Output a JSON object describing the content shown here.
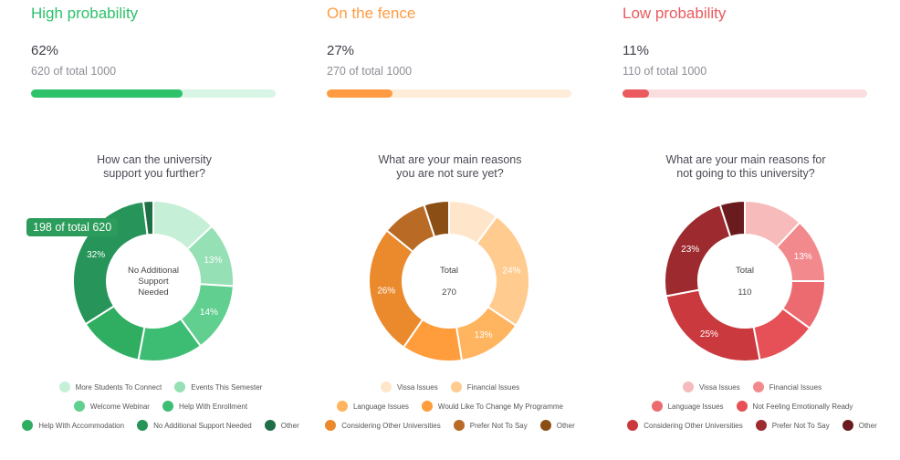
{
  "panels": [
    {
      "title": "High probability",
      "percent": "62%",
      "sub": "620 of total 1000",
      "progress": 0.62,
      "accent": "#2ec26b",
      "track": "#d9f5e5",
      "chart_data": {
        "type": "pie",
        "donut": true,
        "title": "How can the university support you further?",
        "title_lines": [
          "How can the university",
          "support you further?"
        ],
        "center_lines": [
          "No Additional",
          "Support",
          "Needed"
        ],
        "tooltip": "198 of total 620",
        "categories": [
          "More Students To Connect",
          "Events This Semester",
          "Welcome Webinar",
          "Help With Enrollment",
          "Help With Accommodation",
          "No Additional Support Needed",
          "Other"
        ],
        "values": [
          13,
          13,
          14,
          13,
          13,
          32,
          2
        ],
        "labels": [
          "",
          "13%",
          "14%",
          "",
          "",
          "32%",
          ""
        ],
        "colors": [
          "#c6efd8",
          "#96e0b5",
          "#60cf90",
          "#3dbd74",
          "#2fae62",
          "#27955a",
          "#1e6f45"
        ],
        "legend_rows": [
          [
            0,
            1
          ],
          [
            2,
            3
          ],
          [
            4,
            5,
            6
          ]
        ]
      }
    },
    {
      "title": "On the fence",
      "percent": "27%",
      "sub": "270 of total 1000",
      "progress": 0.27,
      "accent": "#ff9c43",
      "track": "#ffecd9",
      "chart_data": {
        "type": "pie",
        "donut": true,
        "title": "What are your main reasons you are not sure yet?",
        "title_lines": [
          "What are your main reasons",
          "you are not sure yet?"
        ],
        "center_lines": [
          "Total",
          "270"
        ],
        "categories": [
          "Vissa Issues",
          "Financial Issues",
          "Language Issues",
          "Would Like To Change My Programme",
          "Considering Other Universities",
          "Prefer Not To Say",
          "Other"
        ],
        "values": [
          10,
          24,
          13,
          12,
          26,
          9,
          5
        ],
        "labels": [
          "",
          "24%",
          "13%",
          "",
          "26%",
          "",
          ""
        ],
        "colors": [
          "#ffe6cb",
          "#ffcb8f",
          "#ffb45f",
          "#ff9c3c",
          "#ea8a2d",
          "#b96a24",
          "#8b4f16"
        ],
        "legend_rows": [
          [
            0,
            1
          ],
          [
            2,
            3
          ],
          [
            4,
            5,
            6
          ]
        ]
      }
    },
    {
      "title": "Low probability",
      "percent": "11%",
      "sub": "110 of total 1000",
      "progress": 0.11,
      "accent": "#ea5a5f",
      "track": "#fadddf",
      "chart_data": {
        "type": "pie",
        "donut": true,
        "title": "What are your main reasons for not going to this university?",
        "title_lines": [
          "What are your main reasons for",
          "not going to this university?"
        ],
        "center_lines": [
          "Total",
          "110"
        ],
        "categories": [
          "Vissa Issues",
          "Financial Issues",
          "Language Issues",
          "Not Feeling Emotionally Ready",
          "Considering Other Universities",
          "Prefer Not To Say",
          "Other"
        ],
        "values": [
          12,
          13,
          10,
          12,
          25,
          23,
          5
        ],
        "labels": [
          "",
          "13%",
          "",
          "",
          "25%",
          "23%",
          ""
        ],
        "colors": [
          "#f7bbbb",
          "#f2898c",
          "#ec6b70",
          "#e55156",
          "#c9393e",
          "#9d2a2f",
          "#6a1b1d"
        ],
        "legend_rows": [
          [
            0,
            1
          ],
          [
            2,
            3
          ],
          [
            4,
            5,
            6
          ]
        ]
      }
    }
  ]
}
